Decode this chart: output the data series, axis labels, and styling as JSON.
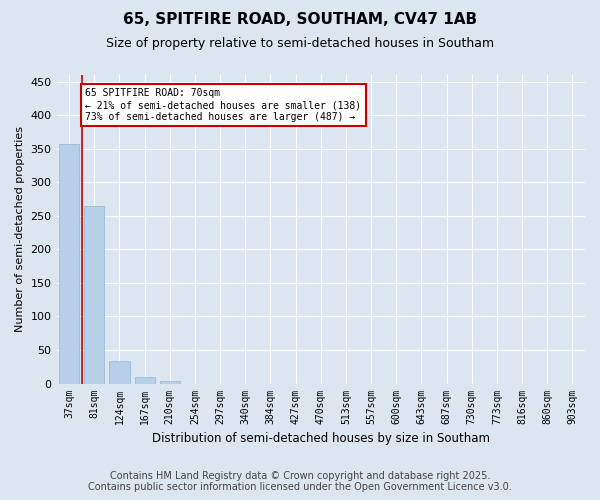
{
  "title": "65, SPITFIRE ROAD, SOUTHAM, CV47 1AB",
  "subtitle": "Size of property relative to semi-detached houses in Southam",
  "xlabel": "Distribution of semi-detached houses by size in Southam",
  "ylabel": "Number of semi-detached properties",
  "categories": [
    "37sqm",
    "81sqm",
    "124sqm",
    "167sqm",
    "210sqm",
    "254sqm",
    "297sqm",
    "340sqm",
    "384sqm",
    "427sqm",
    "470sqm",
    "513sqm",
    "557sqm",
    "600sqm",
    "643sqm",
    "687sqm",
    "730sqm",
    "773sqm",
    "816sqm",
    "860sqm",
    "903sqm"
  ],
  "values": [
    357,
    265,
    33,
    10,
    4,
    0,
    0,
    0,
    0,
    0,
    0,
    0,
    0,
    0,
    0,
    0,
    0,
    0,
    0,
    0,
    0
  ],
  "bar_color": "#b8cfe8",
  "bar_edge_color": "#93b5d8",
  "vline_x": 0.5,
  "vline_color": "#cc0000",
  "annotation_text": "65 SPITFIRE ROAD: 70sqm\n← 21% of semi-detached houses are smaller (138)\n73% of semi-detached houses are larger (487) →",
  "annotation_box_color": "#ffffff",
  "annotation_box_edge": "#cc0000",
  "ylim": [
    0,
    460
  ],
  "yticks": [
    0,
    50,
    100,
    150,
    200,
    250,
    300,
    350,
    400,
    450
  ],
  "background_color": "#dce6f1",
  "plot_bg_color": "#dce6f1",
  "footer_line1": "Contains HM Land Registry data © Crown copyright and database right 2025.",
  "footer_line2": "Contains public sector information licensed under the Open Government Licence v3.0.",
  "title_fontsize": 11,
  "subtitle_fontsize": 9,
  "footer_fontsize": 7
}
